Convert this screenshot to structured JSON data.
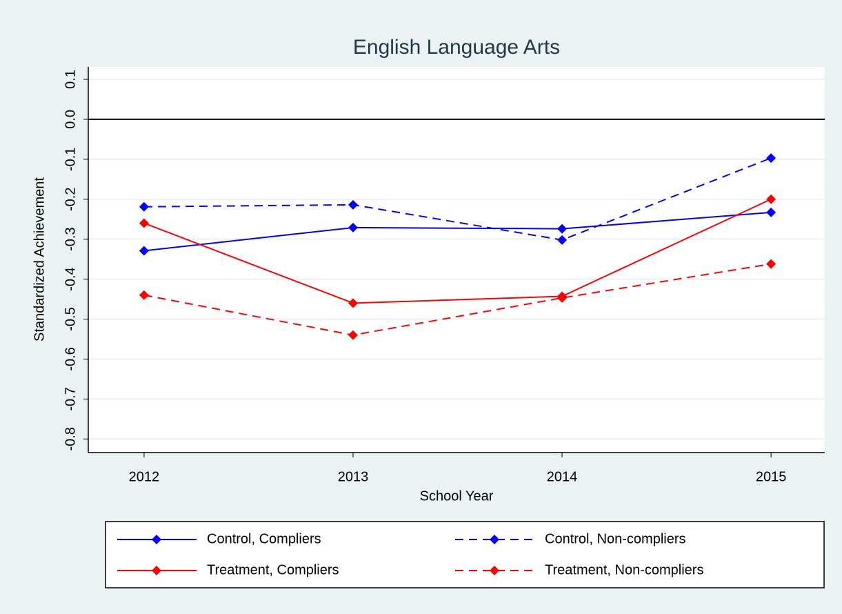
{
  "chart_data": {
    "type": "line",
    "title": "English Language Arts",
    "x_label": "School Year",
    "y_label": "Standardized Achievement",
    "x": [
      2012,
      2013,
      2014,
      2015
    ],
    "series": [
      {
        "name": "Control, Compliers",
        "color": "#0000ff",
        "dash": false,
        "values": [
          -0.329,
          -0.271,
          -0.274,
          -0.233
        ]
      },
      {
        "name": "Control, Non-compliers",
        "color": "#0000ff",
        "dash": true,
        "values": [
          -0.219,
          -0.214,
          -0.302,
          -0.097
        ]
      },
      {
        "name": "Treatment, Compliers",
        "color": "#ff0000",
        "dash": false,
        "values": [
          -0.26,
          -0.46,
          -0.443,
          -0.2
        ]
      },
      {
        "name": "Treatment, Non-compliers",
        "color": "#ff0000",
        "dash": true,
        "values": [
          -0.44,
          -0.54,
          -0.447,
          -0.362
        ]
      }
    ],
    "xlim": [
      2011.733,
      2015.257
    ],
    "xticks": [
      2012,
      2013,
      2014,
      2015
    ],
    "ylim": [
      -0.834,
      0.131
    ],
    "yticks": [
      0.1,
      {
        "value": 0,
        "label": "0.0"
      },
      -0.1,
      -0.2,
      -0.3,
      -0.4,
      -0.5,
      -0.6,
      -0.7,
      -0.8
    ],
    "grid": true,
    "zero_line": true,
    "legend": "bottom"
  }
}
